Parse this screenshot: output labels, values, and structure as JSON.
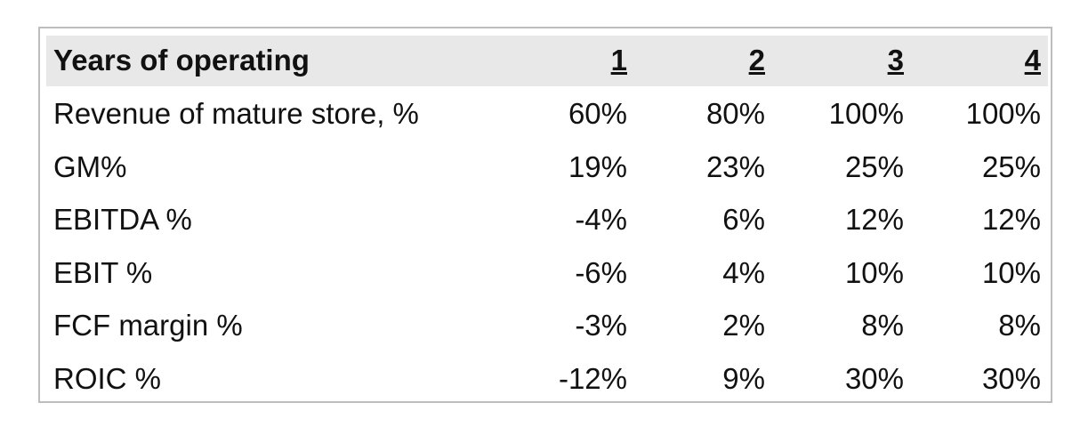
{
  "table": {
    "header": [
      "Years of operating",
      "1",
      "2",
      "3",
      "4"
    ],
    "rows": [
      [
        "Revenue of mature store, %",
        "60%",
        "80%",
        "100%",
        "100%"
      ],
      [
        "GM%",
        "19%",
        "23%",
        "25%",
        "25%"
      ],
      [
        "EBITDA %",
        "-4%",
        "6%",
        "12%",
        "12%"
      ],
      [
        "EBIT %",
        "-6%",
        "4%",
        "10%",
        "10%"
      ],
      [
        "FCF margin %",
        "-3%",
        "2%",
        "8%",
        "8%"
      ],
      [
        "ROIC %",
        "-12%",
        "9%",
        "30%",
        "30%"
      ]
    ]
  }
}
